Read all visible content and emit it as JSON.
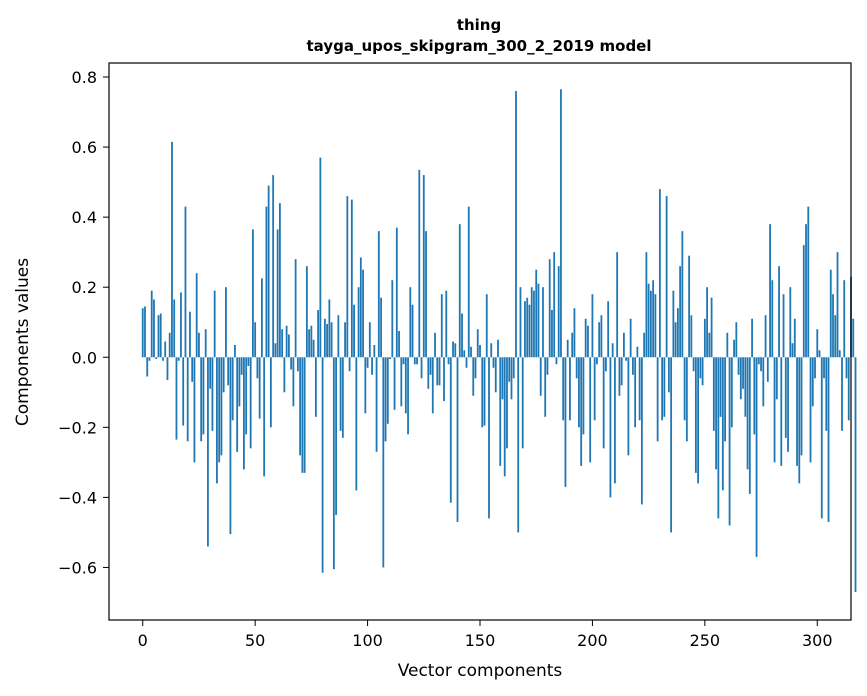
{
  "chart_data": {
    "type": "bar",
    "title": "thing",
    "subtitle": "tayga_upos_skipgram_300_2_2019 model",
    "xlabel": "Vector components",
    "ylabel": "Components values",
    "xlim": [
      -15,
      315
    ],
    "ylim": [
      -0.75,
      0.84
    ],
    "xticks": [
      0,
      50,
      100,
      150,
      200,
      250,
      300
    ],
    "yticks": [
      -0.6,
      -0.4,
      -0.2,
      0.0,
      0.2,
      0.4,
      0.6,
      0.8
    ],
    "ytick_labels": [
      "−0.6",
      "−0.4",
      "−0.2",
      "0.0",
      "0.2",
      "0.4",
      "0.6",
      "0.8"
    ],
    "xtick_labels": [
      "0",
      "50",
      "100",
      "150",
      "200",
      "250",
      "300"
    ],
    "bar_color": "#1f77b4",
    "grid": false,
    "values": [
      0.14,
      0.145,
      -0.055,
      -0.01,
      0.19,
      0.165,
      -0.005,
      0.12,
      0.125,
      -0.01,
      0.045,
      -0.065,
      0.07,
      0.615,
      0.165,
      -0.235,
      -0.01,
      0.185,
      -0.195,
      0.43,
      -0.24,
      0.13,
      -0.07,
      -0.3,
      0.24,
      0.07,
      -0.24,
      -0.22,
      0.08,
      -0.54,
      -0.09,
      -0.21,
      0.19,
      -0.36,
      -0.3,
      -0.28,
      -0.1,
      0.2,
      -0.08,
      -0.505,
      -0.18,
      0.035,
      -0.27,
      -0.14,
      -0.05,
      -0.32,
      -0.22,
      -0.025,
      -0.26,
      0.365,
      0.1,
      -0.06,
      -0.175,
      0.225,
      -0.34,
      0.43,
      0.49,
      -0.2,
      0.52,
      0.04,
      0.365,
      0.44,
      0.08,
      -0.1,
      0.09,
      0.065,
      -0.035,
      -0.14,
      0.28,
      -0.04,
      -0.28,
      -0.33,
      -0.33,
      0.26,
      0.08,
      0.09,
      0.05,
      -0.17,
      0.135,
      0.57,
      -0.615,
      0.11,
      0.095,
      0.165,
      0.1,
      -0.605,
      -0.45,
      0.12,
      -0.21,
      -0.23,
      0.1,
      0.46,
      -0.04,
      0.45,
      0.15,
      -0.38,
      0.2,
      0.285,
      0.25,
      -0.16,
      -0.03,
      0.1,
      -0.05,
      0.035,
      -0.27,
      0.36,
      0.17,
      -0.6,
      -0.24,
      -0.19,
      -0.005,
      0.22,
      -0.15,
      0.37,
      0.075,
      -0.14,
      -0.02,
      -0.16,
      -0.22,
      0.2,
      0.15,
      -0.02,
      -0.02,
      0.535,
      -0.06,
      0.52,
      0.36,
      -0.09,
      -0.05,
      -0.16,
      0.07,
      -0.08,
      -0.08,
      0.18,
      -0.125,
      0.19,
      -0.02,
      -0.415,
      0.045,
      0.04,
      -0.47,
      0.38,
      0.125,
      0.02,
      -0.03,
      0.43,
      0.03,
      -0.11,
      -0.06,
      0.08,
      0.035,
      -0.2,
      -0.195,
      0.18,
      -0.46,
      0.04,
      -0.03,
      -0.1,
      0.05,
      -0.31,
      -0.12,
      -0.34,
      -0.26,
      -0.07,
      -0.12,
      -0.06,
      0.76,
      -0.5,
      0.2,
      -0.26,
      0.16,
      0.17,
      0.15,
      0.2,
      0.19,
      0.25,
      0.21,
      -0.11,
      0.2,
      -0.17,
      -0.05,
      0.28,
      0.135,
      0.3,
      -0.02,
      0.26,
      0.765,
      -0.18,
      -0.37,
      0.05,
      -0.18,
      0.07,
      0.14,
      -0.06,
      -0.2,
      -0.31,
      -0.22,
      0.11,
      0.09,
      -0.3,
      0.18,
      -0.18,
      -0.02,
      0.1,
      0.12,
      -0.26,
      -0.04,
      0.16,
      -0.4,
      0.04,
      -0.36,
      0.3,
      -0.11,
      -0.08,
      0.07,
      -0.01,
      -0.28,
      0.11,
      -0.05,
      -0.2,
      0.03,
      -0.18,
      -0.42,
      0.07,
      0.3,
      0.21,
      0.19,
      0.22,
      0.18,
      -0.24,
      0.48,
      -0.18,
      -0.17,
      0.46,
      -0.1,
      -0.5,
      0.19,
      0.1,
      0.14,
      0.26,
      0.36,
      -0.18,
      -0.24,
      0.29,
      0.12,
      -0.04,
      -0.33,
      -0.36,
      -0.06,
      -0.08,
      0.11,
      0.2,
      0.07,
      0.17,
      -0.21,
      -0.32,
      -0.46,
      -0.17,
      -0.38,
      -0.24,
      0.07,
      -0.48,
      -0.2,
      0.05,
      0.1,
      -0.05,
      -0.12,
      -0.09,
      -0.17,
      -0.32,
      -0.39,
      0.11,
      -0.22,
      -0.57,
      -0.02,
      -0.04,
      -0.14,
      0.12,
      -0.07,
      0.38,
      0.22,
      -0.3,
      -0.12,
      0.26,
      -0.31,
      0.18,
      -0.23,
      -0.27,
      0.2,
      0.04,
      0.11,
      -0.31,
      -0.36,
      -0.28,
      0.32,
      0.38,
      0.43,
      -0.3,
      -0.14,
      -0.06,
      0.08,
      0.02,
      -0.46,
      -0.06,
      -0.21,
      -0.47,
      0.25,
      0.18,
      0.12,
      0.3,
      0.02,
      -0.21,
      0.22,
      -0.06,
      -0.18,
      0.23,
      0.11,
      -0.67
    ]
  }
}
